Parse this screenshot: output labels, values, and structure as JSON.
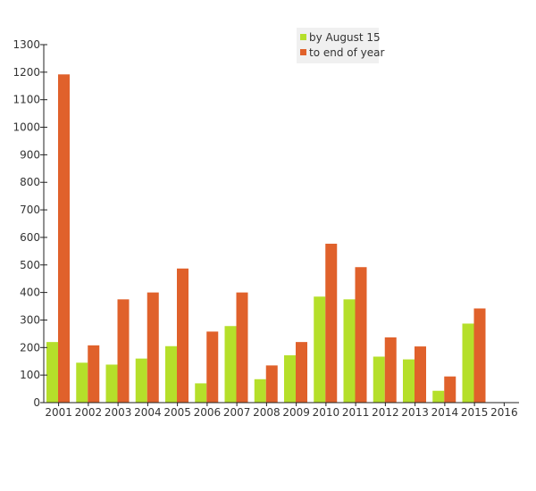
{
  "chart_data": {
    "type": "bar",
    "categories": [
      "2001",
      "2002",
      "2003",
      "2004",
      "2005",
      "2006",
      "2007",
      "2008",
      "2009",
      "2010",
      "2011",
      "2012",
      "2013",
      "2014",
      "2015",
      "2016"
    ],
    "series": [
      {
        "name": "by August 15",
        "color": "#b5df2a",
        "values": [
          220,
          145,
          138,
          160,
          205,
          70,
          278,
          85,
          172,
          385,
          375,
          167,
          157,
          43,
          287,
          0
        ]
      },
      {
        "name": "to end of year",
        "color": "#e0612b",
        "values": [
          1192,
          208,
          375,
          400,
          487,
          258,
          400,
          135,
          220,
          577,
          492,
          237,
          204,
          95,
          342,
          0
        ]
      }
    ],
    "ylim": [
      0,
      1300
    ],
    "yticks": [
      "0",
      "100",
      "200",
      "300",
      "400",
      "500",
      "600",
      "700",
      "800",
      "900",
      "1000",
      "1100",
      "1200",
      "1300"
    ],
    "grid": false,
    "legend_position": "top-right",
    "title": "",
    "xlabel": "",
    "ylabel": ""
  }
}
